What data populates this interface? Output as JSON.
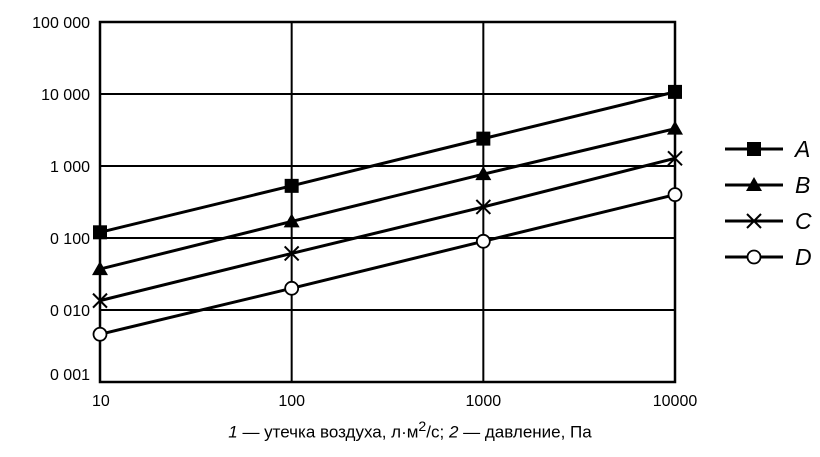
{
  "chart_data": {
    "type": "line",
    "x_scale": "log",
    "y_scale": "log",
    "xlim": [
      10,
      10000
    ],
    "ylim": [
      0.001,
      100
    ],
    "grid": true,
    "legend_position": "right",
    "x_ticks": [
      {
        "value": 10,
        "label": "10"
      },
      {
        "value": 100,
        "label": "100"
      },
      {
        "value": 1000,
        "label": "1000"
      },
      {
        "value": 10000,
        "label": "10000"
      }
    ],
    "y_ticks": [
      {
        "value": 0.001,
        "label": "0 001"
      },
      {
        "value": 0.01,
        "label": "0 010"
      },
      {
        "value": 0.1,
        "label": "0 100"
      },
      {
        "value": 1,
        "label": "1 000"
      },
      {
        "value": 10,
        "label": "10 000"
      },
      {
        "value": 100,
        "label": "100 000"
      }
    ],
    "x": [
      10,
      100,
      1000,
      10000
    ],
    "series": [
      {
        "name": "A",
        "marker": "square-filled",
        "values": [
          0.12,
          0.53,
          2.4,
          10.7
        ]
      },
      {
        "name": "B",
        "marker": "triangle-filled",
        "values": [
          0.037,
          0.17,
          0.77,
          3.3
        ]
      },
      {
        "name": "C",
        "marker": "cross",
        "values": [
          0.0135,
          0.061,
          0.27,
          1.28
        ]
      },
      {
        "name": "D",
        "marker": "circle-open",
        "values": [
          0.0046,
          0.02,
          0.09,
          0.4
        ]
      }
    ],
    "caption": {
      "num1": "1",
      "text1": " — утечка воздуха, л·м",
      "sup": "2",
      "text2": "/с; ",
      "num2": "2",
      "text3": " — давление, Па"
    }
  }
}
